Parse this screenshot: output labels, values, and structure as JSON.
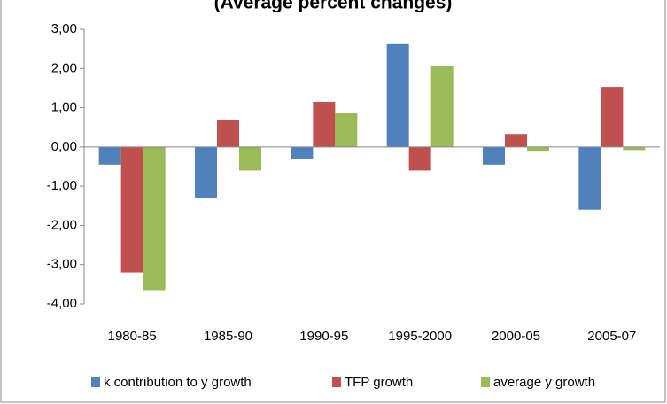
{
  "chart_data": {
    "type": "bar",
    "title": "(Average percent changes)",
    "categories": [
      "1980-85",
      "1985-90",
      "1990-95",
      "1995-2000",
      "2000-05",
      "2005-07"
    ],
    "series": [
      {
        "name": "k contribution to y growth",
        "color": "#4f81bd",
        "values": [
          -0.45,
          -1.3,
          -0.3,
          2.62,
          -0.45,
          -1.6
        ]
      },
      {
        "name": "TFP growth",
        "color": "#c0504d",
        "values": [
          -3.2,
          0.68,
          1.15,
          -0.6,
          0.33,
          1.53
        ]
      },
      {
        "name": "average y growth",
        "color": "#9bbb59",
        "values": [
          -3.65,
          -0.6,
          0.87,
          2.06,
          -0.12,
          -0.08
        ]
      }
    ],
    "ylim": [
      -4,
      3
    ],
    "yticks": [
      {
        "value": 3,
        "label": "3,00"
      },
      {
        "value": 2,
        "label": "2,00"
      },
      {
        "value": 1,
        "label": "1,00"
      },
      {
        "value": 0,
        "label": "0,00"
      },
      {
        "value": -1,
        "label": "-1,00"
      },
      {
        "value": -2,
        "label": "-2,00"
      },
      {
        "value": -3,
        "label": "-3,00"
      },
      {
        "value": -4,
        "label": "-4,00"
      }
    ],
    "grid": false,
    "legend": "bottom"
  }
}
